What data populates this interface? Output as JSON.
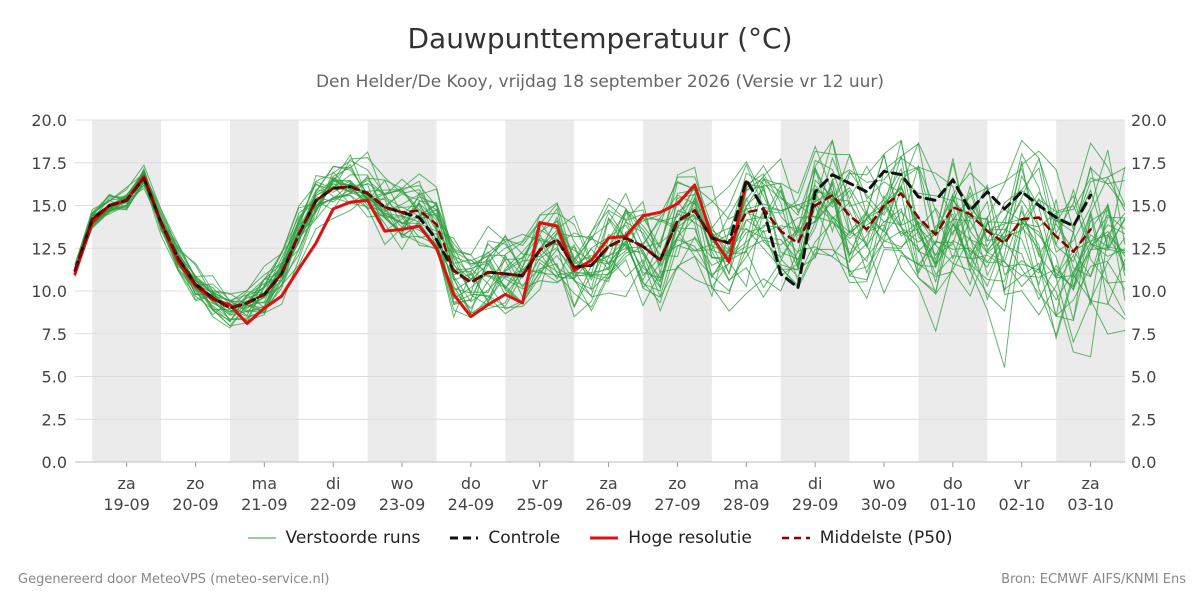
{
  "title": "Dauwpunttemperatuur (°C)",
  "subtitle": "Den Helder/De Kooy, vrijdag 18 september 2026 (Versie vr 12 uur)",
  "footer": {
    "left": "Gegenereerd door MeteoVPS (meteo-service.nl)",
    "right": "Bron: ECMWF AIFS/KNMI Ens"
  },
  "legend": [
    {
      "label": "Verstoorde runs",
      "color": "#2e9e3e",
      "style": "thin"
    },
    {
      "label": "Controle",
      "color": "#111111",
      "style": "dashed"
    },
    {
      "label": "Hoge resolutie",
      "color": "#dd1111",
      "style": "solid"
    },
    {
      "label": "Middelste (P50)",
      "color": "#8b0000",
      "style": "dashed"
    }
  ],
  "colors": {
    "ensemble": "#2e9e3e",
    "control": "#111111",
    "hires": "#dd1111",
    "median": "#8b0000",
    "weekend_band": "#ebebeb",
    "grid": "#dddddd"
  },
  "chart_data": {
    "type": "line",
    "title": "Dauwpunttemperatuur (°C)",
    "ylim": [
      0,
      20
    ],
    "y_ticks": [
      "0.0",
      "2.5",
      "5.0",
      "7.5",
      "10.0",
      "12.5",
      "15.0",
      "17.5",
      "20.0"
    ],
    "x_range_days": [
      -0.75,
      14.5
    ],
    "x_ticks": [
      {
        "day": "za",
        "date": "19-09"
      },
      {
        "day": "zo",
        "date": "20-09"
      },
      {
        "day": "ma",
        "date": "21-09"
      },
      {
        "day": "di",
        "date": "22-09"
      },
      {
        "day": "wo",
        "date": "23-09"
      },
      {
        "day": "do",
        "date": "24-09"
      },
      {
        "day": "vr",
        "date": "25-09"
      },
      {
        "day": "za",
        "date": "26-09"
      },
      {
        "day": "zo",
        "date": "27-09"
      },
      {
        "day": "ma",
        "date": "28-09"
      },
      {
        "day": "di",
        "date": "29-09"
      },
      {
        "day": "wo",
        "date": "30-09"
      },
      {
        "day": "do",
        "date": "01-10"
      },
      {
        "day": "vr",
        "date": "02-10"
      },
      {
        "day": "za",
        "date": "03-10"
      }
    ],
    "time_step_days": 0.25,
    "series": [
      {
        "name": "Hoge resolutie",
        "style": "solid",
        "color": "#dd1111",
        "values": [
          11.0,
          14.0,
          15.0,
          15.3,
          16.7,
          14.0,
          11.7,
          10.3,
          9.5,
          9.2,
          8.1,
          9.0,
          9.7,
          11.3,
          12.8,
          14.8,
          15.2,
          15.3,
          13.5,
          13.6,
          13.8,
          12.5,
          9.8,
          8.5,
          9.2,
          9.8,
          9.3,
          14.0,
          13.8,
          11.2,
          11.8,
          13.1,
          13.2,
          14.4,
          14.6,
          15.1,
          16.2,
          13.2,
          11.7,
          16.4
        ]
      },
      {
        "name": "Controle",
        "style": "dashed",
        "color": "#111111",
        "values": [
          11.2,
          14.2,
          15.0,
          15.3,
          16.6,
          14.0,
          11.9,
          10.4,
          9.6,
          9.0,
          9.3,
          9.8,
          11.0,
          13.3,
          15.3,
          16.0,
          16.1,
          15.7,
          14.9,
          14.6,
          14.3,
          13.0,
          11.2,
          10.5,
          11.1,
          11.0,
          10.9,
          12.4,
          13.0,
          11.4,
          11.5,
          12.6,
          13.1,
          12.6,
          11.8,
          14.1,
          14.7,
          13.1,
          12.8,
          16.5,
          14.8,
          11.0,
          10.2,
          15.8,
          16.8,
          16.3,
          15.8,
          17.0,
          16.8,
          15.5,
          15.3,
          16.5,
          14.7,
          15.8,
          14.8,
          15.8,
          15.0,
          14.3,
          13.8,
          15.6
        ]
      },
      {
        "name": "Middelste (P50)",
        "style": "dashed",
        "color": "#8b0000",
        "values": [
          11.2,
          14.2,
          15.0,
          15.3,
          16.6,
          14.0,
          11.9,
          10.4,
          9.6,
          9.0,
          9.3,
          9.8,
          11.0,
          13.3,
          15.3,
          16.0,
          16.1,
          15.7,
          14.9,
          14.6,
          14.7,
          13.9,
          11.2,
          10.5,
          11.1,
          11.0,
          10.9,
          12.4,
          13.0,
          11.4,
          11.5,
          12.6,
          13.1,
          12.6,
          11.8,
          14.1,
          14.7,
          13.1,
          12.8,
          14.6,
          14.8,
          13.5,
          12.8,
          15.0,
          15.6,
          14.4,
          13.6,
          15.0,
          15.7,
          14.3,
          13.3,
          14.9,
          14.5,
          13.5,
          12.8,
          14.2,
          14.3,
          13.2,
          12.3,
          13.6
        ]
      }
    ]
  }
}
